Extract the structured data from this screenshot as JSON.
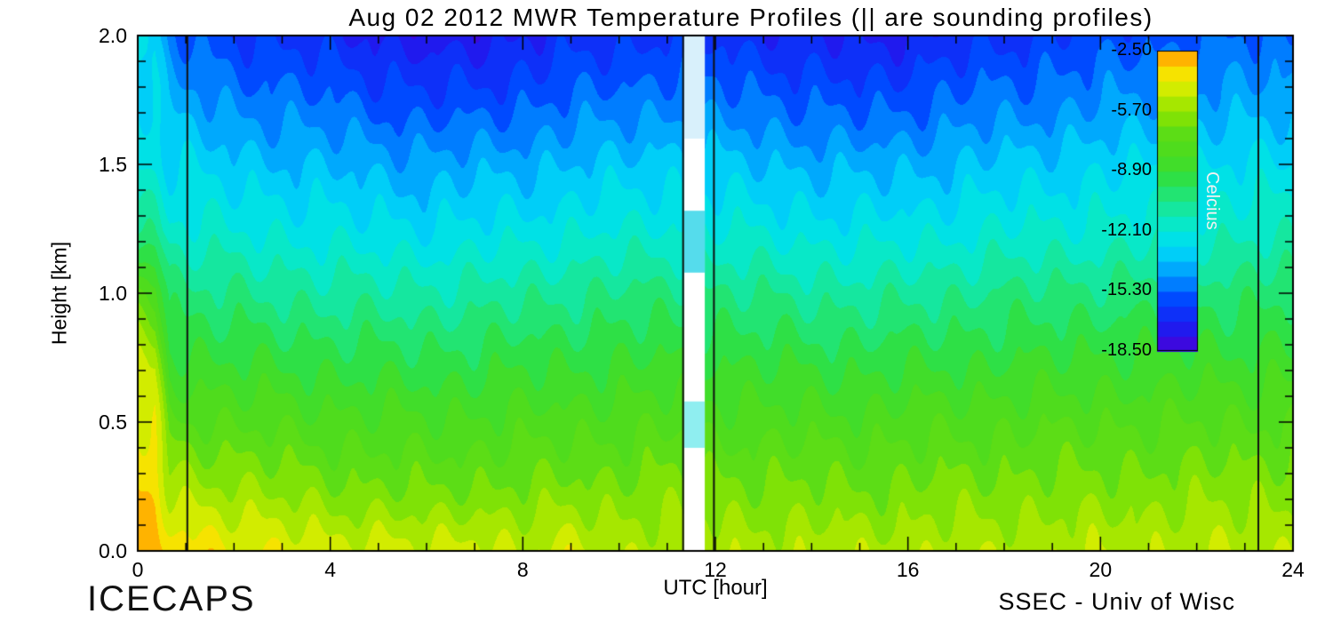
{
  "title": "Aug 02 2012 MWR Temperature Profiles (|| are sounding profiles)",
  "footer": {
    "logo": "ICECAPS",
    "credit": "SSEC - Univ of Wisc"
  },
  "axes": {
    "x": {
      "label": "UTC [hour]",
      "min": 0,
      "max": 24,
      "major_ticks": [
        0,
        4,
        8,
        12,
        16,
        20,
        24
      ],
      "minor_step": 1
    },
    "y": {
      "label": "Height [km]",
      "min": 0,
      "max": 2,
      "major_ticks": [
        "0.0",
        "0.5",
        "1.0",
        "1.5",
        "2.0"
      ],
      "minor_step": 0.1
    }
  },
  "colorbar": {
    "label": "Celcius",
    "label_color": "#f2f2f2",
    "tick_labels": [
      "-2.50",
      "-5.70",
      "-8.90",
      "-12.10",
      "-15.30",
      "-18.50"
    ],
    "min": -18.5,
    "max": -2.5
  },
  "chart_data": {
    "type": "heatmap",
    "xlabel": "UTC [hour]",
    "ylabel": "Height [km]",
    "value_unit": "Celcius",
    "contour_interval_c": 0.8,
    "value_range_c": [
      -18.5,
      -2.5
    ],
    "x_hours": [
      0,
      0.35,
      0.65,
      1,
      2,
      3,
      4,
      5,
      6,
      7,
      8,
      9,
      10,
      11,
      12,
      13,
      14,
      15,
      16,
      17,
      18,
      19,
      20,
      21,
      22,
      23,
      24
    ],
    "y_heights_km": [
      2.0,
      1.75,
      1.5,
      1.25,
      1.0,
      0.75,
      0.5,
      0.25,
      0.0
    ],
    "temperature_c": [
      [
        -13.0,
        -13.2,
        -15.0,
        -15.5,
        -16.0,
        -16.3,
        -16.6,
        -17.0,
        -17.4,
        -17.3,
        -16.9,
        -16.6,
        -16.4,
        -16.1,
        -16.3,
        -16.6,
        -16.9,
        -17.1,
        -16.9,
        -16.6,
        -16.3,
        -16.0,
        -15.8,
        -15.6,
        -15.4,
        -15.3,
        -15.2
      ],
      [
        -12.6,
        -12.8,
        -14.0,
        -14.2,
        -14.8,
        -15.0,
        -15.3,
        -15.6,
        -15.9,
        -15.8,
        -15.5,
        -15.2,
        -15.0,
        -14.8,
        -15.0,
        -15.2,
        -15.5,
        -15.7,
        -15.5,
        -15.2,
        -15.0,
        -14.8,
        -14.6,
        -14.4,
        -14.3,
        -14.2,
        -14.1
      ],
      [
        -12.2,
        -12.3,
        -12.9,
        -13.0,
        -13.4,
        -13.6,
        -13.8,
        -14.0,
        -14.2,
        -14.1,
        -13.9,
        -13.7,
        -13.5,
        -13.3,
        -13.5,
        -13.7,
        -13.9,
        -14.0,
        -13.9,
        -13.7,
        -13.5,
        -13.3,
        -13.1,
        -13.0,
        -12.9,
        -12.8,
        -12.8
      ],
      [
        -10.5,
        -10.7,
        -11.8,
        -11.9,
        -12.1,
        -12.3,
        -12.5,
        -12.7,
        -12.8,
        -12.7,
        -12.5,
        -12.3,
        -12.1,
        -12.0,
        -12.1,
        -12.3,
        -12.5,
        -12.6,
        -12.5,
        -12.3,
        -12.1,
        -12.0,
        -11.9,
        -11.8,
        -11.7,
        -11.6,
        -11.6
      ],
      [
        -7.0,
        -7.3,
        -10.0,
        -10.2,
        -10.5,
        -10.7,
        -10.9,
        -11.0,
        -11.1,
        -11.0,
        -10.8,
        -10.6,
        -10.4,
        -10.3,
        -10.4,
        -10.6,
        -10.8,
        -10.9,
        -10.8,
        -10.6,
        -10.4,
        -10.3,
        -10.2,
        -10.1,
        -10.0,
        -10.0,
        -9.9
      ],
      [
        -5.0,
        -5.2,
        -8.6,
        -8.8,
        -9.0,
        -9.1,
        -9.3,
        -9.4,
        -9.5,
        -9.4,
        -9.2,
        -9.1,
        -9.0,
        -8.9,
        -9.0,
        -9.1,
        -9.2,
        -9.3,
        -9.2,
        -9.1,
        -9.0,
        -8.9,
        -8.8,
        -8.8,
        -8.7,
        -8.7,
        -8.6
      ],
      [
        -4.0,
        -4.2,
        -7.0,
        -7.2,
        -7.4,
        -7.6,
        -7.8,
        -7.9,
        -8.0,
        -7.9,
        -7.8,
        -7.7,
        -7.6,
        -7.5,
        -7.6,
        -7.7,
        -7.8,
        -7.8,
        -7.7,
        -7.6,
        -7.5,
        -7.5,
        -7.4,
        -7.4,
        -7.3,
        -7.3,
        -7.2
      ],
      [
        -3.4,
        -3.6,
        -5.2,
        -5.4,
        -5.6,
        -6.0,
        -6.3,
        -6.5,
        -6.6,
        -6.5,
        -6.4,
        -6.3,
        -6.3,
        -6.2,
        -6.3,
        -6.4,
        -6.4,
        -6.5,
        -6.4,
        -6.3,
        -6.3,
        -6.2,
        -6.2,
        -6.1,
        -6.1,
        -6.0,
        -6.0
      ],
      [
        -3.0,
        -3.1,
        -3.5,
        -3.6,
        -3.8,
        -4.2,
        -4.6,
        -4.3,
        -4.8,
        -4.4,
        -4.9,
        -4.5,
        -5.0,
        -5.1,
        -5.0,
        -5.1,
        -5.2,
        -5.1,
        -5.2,
        -5.1,
        -5.0,
        -5.1,
        -5.0,
        -5.0,
        -4.9,
        -5.0,
        -4.9
      ]
    ],
    "missing_data_gap": {
      "start_hour": 11.35,
      "end_hour": 11.78,
      "fill_color": "#ffffff",
      "patches": [
        {
          "height_from": 1.6,
          "height_to": 2.0,
          "color": "#d8f0fb"
        },
        {
          "height_from": 1.08,
          "height_to": 1.32,
          "color": "#55dcec"
        },
        {
          "height_from": 0.4,
          "height_to": 0.58,
          "color": "#8feef0"
        }
      ]
    },
    "sounding_lines_hours": [
      1.03,
      11.33,
      11.97,
      23.28
    ],
    "colormap_stops": [
      [
        -18.5,
        "#4a00d8"
      ],
      [
        -17.2,
        "#1c1cf0"
      ],
      [
        -15.8,
        "#0044ff"
      ],
      [
        -14.6,
        "#0090ff"
      ],
      [
        -13.4,
        "#00ccfa"
      ],
      [
        -12.2,
        "#00e8e0"
      ],
      [
        -11.2,
        "#10e8b0"
      ],
      [
        -10.2,
        "#20e478"
      ],
      [
        -9.2,
        "#30e040"
      ],
      [
        -8.2,
        "#48dc20"
      ],
      [
        -7.0,
        "#58dc18"
      ],
      [
        -5.8,
        "#8ce400"
      ],
      [
        -4.8,
        "#c0ea00"
      ],
      [
        -4.0,
        "#f0ee00"
      ],
      [
        -3.2,
        "#ffd000"
      ],
      [
        -2.7,
        "#ffa000"
      ],
      [
        -2.5,
        "#ff7e00"
      ]
    ]
  }
}
